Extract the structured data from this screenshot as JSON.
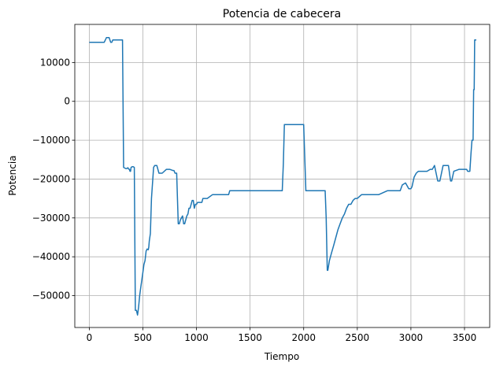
{
  "chart_data": {
    "type": "line",
    "title": "Potencia de cabecera",
    "xlabel": "Tiempo",
    "ylabel": "Potencia",
    "xlim": [
      -135,
      3735
    ],
    "ylim": [
      -58200,
      19800
    ],
    "xticks": [
      0,
      500,
      1000,
      1500,
      2000,
      2500,
      3000,
      3500
    ],
    "yticks": [
      -50000,
      -40000,
      -30000,
      -20000,
      -10000,
      0,
      10000
    ],
    "grid": true,
    "series": [
      {
        "color": "#1f77b4",
        "x": [
          0,
          60,
          70,
          140,
          160,
          170,
          185,
          200,
          210,
          220,
          260,
          290,
          310,
          320,
          340,
          350,
          360,
          370,
          375,
          380,
          385,
          390,
          400,
          410,
          420,
          430,
          440,
          450,
          460,
          470,
          480,
          490,
          500,
          510,
          520,
          530,
          540,
          550,
          555,
          560,
          570,
          580,
          600,
          610,
          630,
          650,
          680,
          720,
          750,
          780,
          790,
          800,
          810,
          815,
          830,
          840,
          850,
          860,
          870,
          880,
          890,
          900,
          910,
          920,
          930,
          940,
          950,
          960,
          970,
          980,
          990,
          1000,
          1010,
          1050,
          1060,
          1080,
          1100,
          1150,
          1200,
          1250,
          1300,
          1310,
          1400,
          1500,
          1600,
          1700,
          1800,
          1810,
          1820,
          1900,
          2000,
          2010,
          2020,
          2100,
          2200,
          2210,
          2220,
          2225,
          2240,
          2260,
          2280,
          2300,
          2320,
          2340,
          2360,
          2380,
          2400,
          2420,
          2440,
          2460,
          2480,
          2500,
          2540,
          2560,
          2600,
          2640,
          2700,
          2780,
          2800,
          2850,
          2900,
          2920,
          2950,
          2980,
          3000,
          3010,
          3030,
          3050,
          3070,
          3100,
          3150,
          3180,
          3200,
          3220,
          3250,
          3270,
          3300,
          3340,
          3350,
          3370,
          3380,
          3400,
          3450,
          3500,
          3520,
          3530,
          3540,
          3550,
          3560,
          3570,
          3575,
          3580,
          3585,
          3590,
          3595,
          3600,
          3610
        ],
        "values": [
          15200,
          15200,
          15200,
          15200,
          16400,
          16400,
          16400,
          15200,
          15200,
          15800,
          15800,
          15800,
          15800,
          -17000,
          -17300,
          -17300,
          -17100,
          -17500,
          -17500,
          -18000,
          -18000,
          -17000,
          -16800,
          -16800,
          -17000,
          -53800,
          -53800,
          -55000,
          -53000,
          -50000,
          -48000,
          -46000,
          -44000,
          -42000,
          -41000,
          -38500,
          -38000,
          -38200,
          -37500,
          -36000,
          -34000,
          -25000,
          -17000,
          -16500,
          -16500,
          -18500,
          -18500,
          -17500,
          -17500,
          -17800,
          -17800,
          -18500,
          -18500,
          -18500,
          -31500,
          -31500,
          -30500,
          -30000,
          -29500,
          -31500,
          -31500,
          -30500,
          -29500,
          -29000,
          -27500,
          -27500,
          -26500,
          -25500,
          -25500,
          -27500,
          -26500,
          -26500,
          -26000,
          -26000,
          -25000,
          -25000,
          -25000,
          -24000,
          -24000,
          -24000,
          -24000,
          -23000,
          -23000,
          -23000,
          -23000,
          -23000,
          -23000,
          -16000,
          -6000,
          -6000,
          -6000,
          -14500,
          -23000,
          -23000,
          -23000,
          -30000,
          -43500,
          -43500,
          -41000,
          -39000,
          -37000,
          -35000,
          -33000,
          -31500,
          -30000,
          -29000,
          -27500,
          -26500,
          -26500,
          -25500,
          -25000,
          -25000,
          -24000,
          -24000,
          -24000,
          -24000,
          -24000,
          -23000,
          -23000,
          -23000,
          -23000,
          -21500,
          -21000,
          -22500,
          -22500,
          -22000,
          -19500,
          -18500,
          -18000,
          -18000,
          -18000,
          -17500,
          -17500,
          -16500,
          -20500,
          -20500,
          -16500,
          -16500,
          -16500,
          -20500,
          -20500,
          -18000,
          -17500,
          -17500,
          -17500,
          -18000,
          -18000,
          -18000,
          -13500,
          -10000,
          -10000,
          -10000,
          3000,
          3000,
          15800,
          15800,
          15800
        ]
      }
    ]
  }
}
